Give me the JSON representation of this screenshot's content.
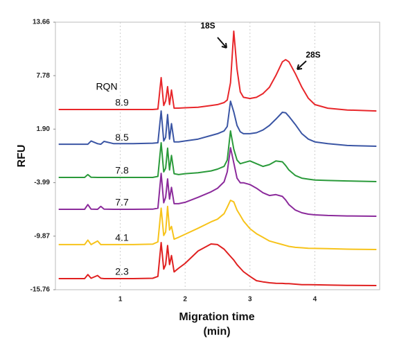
{
  "chart_data": {
    "type": "line",
    "ylabel": "RFU",
    "xlabel": [
      "Migration time",
      "(min)"
    ],
    "legend_title": "RQN",
    "annotations": [
      "18S",
      "28S"
    ],
    "xlim": [
      0,
      5
    ],
    "xticks": [
      1,
      2,
      3,
      4
    ],
    "ylim": [
      -15.76,
      13.66
    ],
    "yticks": [
      -15.76,
      -9.87,
      -3.99,
      {
        "value": 1.9,
        "label": "1.90"
      },
      7.78,
      13.66
    ],
    "grid": true,
    "x": [
      0.05,
      0.3,
      0.45,
      0.5,
      0.55,
      0.65,
      0.7,
      0.75,
      0.9,
      1.2,
      1.5,
      1.58,
      1.63,
      1.67,
      1.7,
      1.73,
      1.76,
      1.79,
      1.83,
      1.9,
      2.0,
      2.2,
      2.4,
      2.5,
      2.6,
      2.65,
      2.7,
      2.75,
      2.8,
      2.85,
      2.9,
      3.0,
      3.1,
      3.2,
      3.3,
      3.4,
      3.5,
      3.55,
      3.6,
      3.7,
      3.8,
      3.9,
      4.0,
      4.2,
      4.5,
      4.95
    ],
    "series": [
      {
        "name": "8.9",
        "color": "#e8262a",
        "values": [
          4.06,
          4.06,
          4.06,
          4.06,
          4.06,
          4.06,
          4.06,
          4.06,
          4.06,
          4.06,
          4.06,
          4.1,
          7.56,
          4.5,
          5.0,
          6.57,
          4.6,
          6.2,
          4.2,
          4.21,
          4.25,
          4.3,
          4.5,
          4.6,
          4.82,
          5.1,
          7.0,
          12.67,
          8.5,
          6.0,
          5.4,
          5.27,
          5.4,
          5.8,
          6.5,
          7.8,
          9.3,
          9.54,
          9.3,
          8.0,
          6.5,
          5.3,
          4.6,
          4.2,
          4.0,
          3.9
        ]
      },
      {
        "name": "8.5",
        "color": "#3a55a4",
        "values": [
          0.24,
          0.24,
          0.24,
          0.24,
          0.6,
          0.3,
          0.24,
          0.55,
          0.3,
          0.3,
          0.35,
          0.4,
          3.9,
          0.6,
          1.0,
          3.5,
          0.8,
          2.5,
          0.5,
          0.5,
          0.6,
          0.8,
          1.2,
          1.4,
          1.7,
          2.2,
          4.97,
          3.8,
          2.3,
          1.6,
          1.4,
          1.4,
          1.5,
          1.8,
          2.3,
          3.0,
          3.75,
          3.7,
          3.3,
          2.4,
          1.4,
          0.8,
          0.5,
          0.3,
          0.1,
          0.02
        ]
      },
      {
        "name": "7.8",
        "color": "#2a9a3a",
        "values": [
          -3.41,
          -3.41,
          -3.41,
          -3.1,
          -3.4,
          -3.41,
          -3.41,
          -3.41,
          -3.41,
          -3.41,
          -3.41,
          -3.3,
          0.4,
          -2.8,
          -2.4,
          -0.2,
          -2.6,
          -1.0,
          -3.0,
          -3.1,
          -3.0,
          -2.9,
          -2.7,
          -2.5,
          -2.2,
          -1.5,
          1.7,
          -0.3,
          -1.5,
          -1.9,
          -1.8,
          -1.6,
          -1.9,
          -2.2,
          -2.0,
          -1.6,
          -1.7,
          -2.1,
          -2.6,
          -3.2,
          -3.5,
          -3.6,
          -3.7,
          -3.75,
          -3.8,
          -3.87
        ]
      },
      {
        "name": "7.7",
        "color": "#8b2a9b",
        "values": [
          -6.92,
          -6.92,
          -6.92,
          -6.4,
          -6.9,
          -6.92,
          -6.6,
          -6.9,
          -6.92,
          -6.92,
          -6.9,
          -6.8,
          -2.96,
          -6.2,
          -5.6,
          -3.57,
          -5.8,
          -4.5,
          -6.3,
          -6.3,
          -6.15,
          -5.6,
          -5.0,
          -4.6,
          -3.9,
          -2.8,
          -0.14,
          -1.8,
          -3.5,
          -4.0,
          -4.0,
          -4.2,
          -4.6,
          -5.1,
          -5.4,
          -5.3,
          -5.5,
          -5.9,
          -6.4,
          -7.0,
          -7.3,
          -7.45,
          -7.53,
          -7.6,
          -7.65,
          -7.68
        ]
      },
      {
        "name": "4.1",
        "color": "#f7c31a",
        "values": [
          -10.8,
          -10.8,
          -10.8,
          -10.3,
          -10.8,
          -10.4,
          -10.8,
          -10.8,
          -10.8,
          -10.8,
          -10.75,
          -10.5,
          -6.8,
          -9.8,
          -9.4,
          -6.6,
          -9.2,
          -8.8,
          -10.2,
          -10.0,
          -9.66,
          -9.0,
          -8.3,
          -8.0,
          -7.4,
          -6.7,
          -5.93,
          -6.1,
          -7.0,
          -7.6,
          -8.2,
          -9.05,
          -9.6,
          -10.0,
          -10.4,
          -10.6,
          -10.8,
          -10.9,
          -11.0,
          -11.1,
          -11.15,
          -11.2,
          -11.22,
          -11.25,
          -11.3,
          -11.34
        ]
      },
      {
        "name": "2.3",
        "color": "#e02020",
        "values": [
          -14.54,
          -14.54,
          -14.54,
          -14.1,
          -14.5,
          -14.2,
          -14.5,
          -14.54,
          -14.54,
          -14.54,
          -14.5,
          -14.3,
          -10.58,
          -13.5,
          -13.0,
          -10.9,
          -13.0,
          -12.0,
          -13.8,
          -13.4,
          -12.86,
          -11.5,
          -10.73,
          -10.8,
          -11.3,
          -11.7,
          -12.1,
          -12.5,
          -13.0,
          -13.4,
          -13.78,
          -14.3,
          -14.77,
          -14.9,
          -15.0,
          -15.05,
          -15.07,
          -15.1,
          -15.1,
          -15.15,
          -15.2,
          -15.2,
          -15.22,
          -15.25,
          -15.28,
          -15.3
        ]
      }
    ]
  }
}
